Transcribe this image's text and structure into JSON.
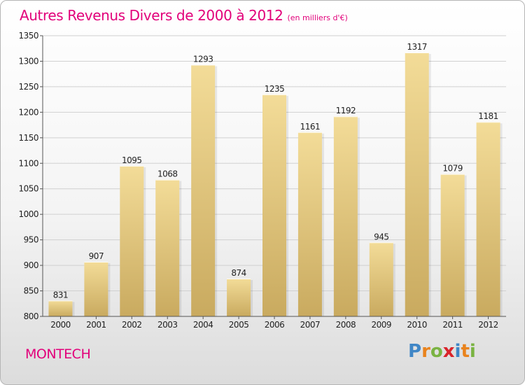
{
  "title": "Autres Revenus Divers de 2000 à 2012",
  "subtitle": "(en milliers d'€)",
  "place": "MONTECH",
  "logo": {
    "letters": [
      {
        "ch": "P",
        "color": "#3f86c6"
      },
      {
        "ch": "r",
        "color": "#e9831d"
      },
      {
        "ch": "o",
        "color": "#7ab342"
      },
      {
        "ch": "x",
        "color": "#d9232a"
      },
      {
        "ch": "i",
        "color": "#3f86c6"
      },
      {
        "ch": "t",
        "color": "#e9831d"
      },
      {
        "ch": "i",
        "color": "#7ab342"
      }
    ]
  },
  "colors": {
    "bar_top": "#f3dc98",
    "bar_bottom": "#c9aa5f",
    "grid": "#d0d0d0",
    "axis": "#555555",
    "text": "#222222"
  },
  "chart_data": {
    "type": "bar",
    "categories": [
      "2000",
      "2001",
      "2002",
      "2003",
      "2004",
      "2005",
      "2006",
      "2007",
      "2008",
      "2009",
      "2010",
      "2011",
      "2012"
    ],
    "values": [
      831,
      907,
      1095,
      1068,
      1293,
      874,
      1235,
      1161,
      1192,
      945,
      1317,
      1079,
      1181
    ],
    "ylim": [
      800,
      1350
    ],
    "yticks": [
      800,
      850,
      900,
      950,
      1000,
      1050,
      1100,
      1150,
      1200,
      1250,
      1300,
      1350
    ],
    "xlabel": "",
    "ylabel": "",
    "grid": true
  }
}
